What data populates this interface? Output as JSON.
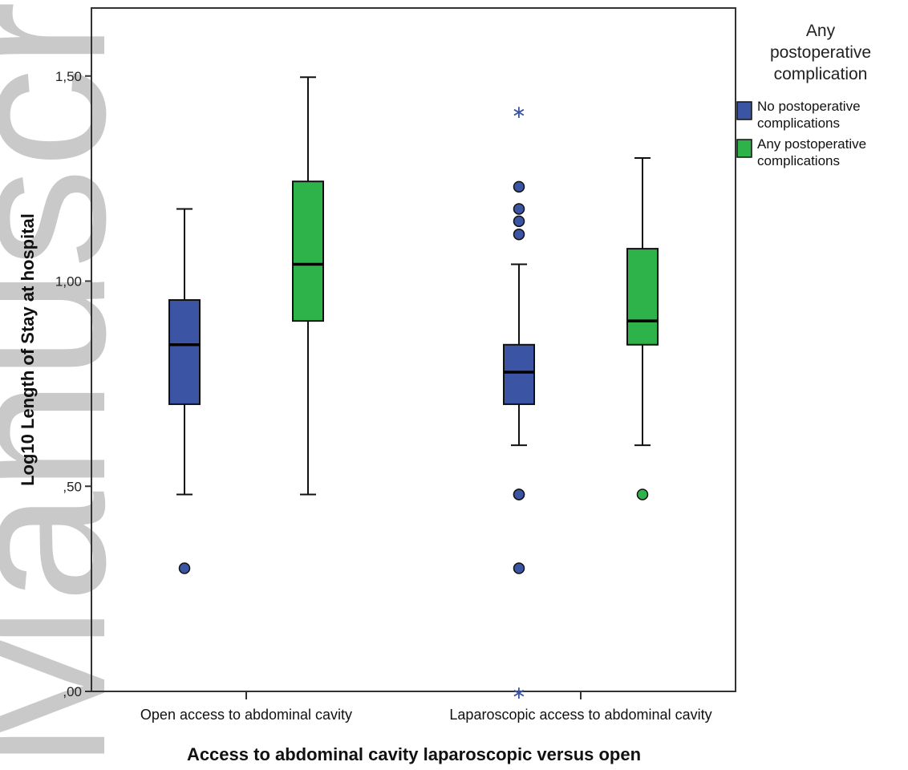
{
  "watermark": "Manuscript",
  "chart_data": {
    "type": "box",
    "title": "",
    "xlabel": "Access to abdominal cavity laparoscopic versus open",
    "ylabel": "Log10 Length of Stay at hospital",
    "ylim": [
      0,
      1.67
    ],
    "yticks": [
      0,
      0.5,
      1.0,
      1.5
    ],
    "ytick_labels": [
      ",00",
      ",50",
      "1,00",
      "1,50"
    ],
    "categories": [
      "Open access to abdominal cavity",
      "Laparoscopic access to abdominal cavity"
    ],
    "grid": false,
    "legend": {
      "title": "Any postoperative complication",
      "position": "right"
    },
    "series": [
      {
        "name": "No postoperative complications",
        "color": "#3b55a4",
        "boxes": [
          {
            "whisker_low": 0.48,
            "q1": 0.7,
            "median": 0.845,
            "q3": 0.954,
            "whisker_high": 1.176,
            "outliers": [
              0.3
            ],
            "extremes": []
          },
          {
            "whisker_low": 0.6,
            "q1": 0.7,
            "median": 0.778,
            "q3": 0.845,
            "whisker_high": 1.041,
            "outliers": [
              0.3,
              0.48,
              0.48,
              1.114,
              1.146,
              1.176,
              1.23
            ],
            "extremes": [
              0.0,
              1.415
            ]
          }
        ]
      },
      {
        "name": "Any postoperative complications",
        "color": "#2db34a",
        "boxes": [
          {
            "whisker_low": 0.48,
            "q1": 0.903,
            "median": 1.041,
            "q3": 1.243,
            "whisker_high": 1.497,
            "outliers": [],
            "extremes": []
          },
          {
            "whisker_low": 0.6,
            "q1": 0.845,
            "median": 0.903,
            "q3": 1.079,
            "whisker_high": 1.3,
            "outliers": [
              0.48
            ],
            "extremes": []
          }
        ]
      }
    ]
  }
}
